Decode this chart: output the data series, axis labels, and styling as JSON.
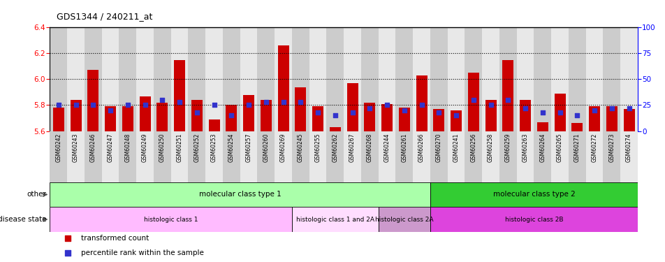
{
  "title": "GDS1344 / 240211_at",
  "samples": [
    "GSM60242",
    "GSM60243",
    "GSM60246",
    "GSM60247",
    "GSM60248",
    "GSM60249",
    "GSM60250",
    "GSM60251",
    "GSM60252",
    "GSM60253",
    "GSM60254",
    "GSM60257",
    "GSM60260",
    "GSM60269",
    "GSM60245",
    "GSM60255",
    "GSM60262",
    "GSM60267",
    "GSM60268",
    "GSM60244",
    "GSM60261",
    "GSM60266",
    "GSM60270",
    "GSM60241",
    "GSM60256",
    "GSM60258",
    "GSM60259",
    "GSM60263",
    "GSM60264",
    "GSM60265",
    "GSM60271",
    "GSM60272",
    "GSM60273",
    "GSM60274"
  ],
  "transformed_count": [
    5.78,
    5.84,
    6.07,
    5.79,
    5.79,
    5.87,
    5.82,
    6.15,
    5.84,
    5.69,
    5.8,
    5.88,
    5.84,
    6.26,
    5.94,
    5.79,
    5.63,
    5.97,
    5.82,
    5.81,
    5.78,
    6.03,
    5.77,
    5.76,
    6.05,
    5.84,
    6.15,
    5.84,
    5.67,
    5.89,
    5.66,
    5.79,
    5.79,
    5.77
  ],
  "percentile_rank": [
    25,
    25,
    25,
    20,
    25,
    25,
    30,
    28,
    18,
    25,
    15,
    25,
    28,
    28,
    28,
    18,
    15,
    18,
    22,
    25,
    20,
    25,
    18,
    15,
    30,
    25,
    30,
    22,
    18,
    18,
    15,
    20,
    22,
    22
  ],
  "y_min": 5.6,
  "y_max": 6.4,
  "y_ticks_left": [
    5.6,
    5.8,
    6.0,
    6.2,
    6.4
  ],
  "y_ticks_right": [
    0,
    25,
    50,
    75,
    100
  ],
  "dotted_lines": [
    5.8,
    6.0,
    6.2
  ],
  "bar_color": "#cc0000",
  "dot_color": "#3333cc",
  "baseline": 5.6,
  "col_colors": [
    "#cccccc",
    "#e8e8e8"
  ],
  "molecular_class_groups": [
    {
      "label": "molecular class type 1",
      "start": 0,
      "end": 22,
      "color": "#aaffaa"
    },
    {
      "label": "molecular class type 2",
      "start": 22,
      "end": 34,
      "color": "#33cc33"
    }
  ],
  "disease_state_groups": [
    {
      "label": "histologic class 1",
      "start": 0,
      "end": 14,
      "color": "#ffbbff"
    },
    {
      "label": "histologic class 1 and 2A",
      "start": 14,
      "end": 19,
      "color": "#ffddff"
    },
    {
      "label": "histologic class 2A",
      "start": 19,
      "end": 22,
      "color": "#cc99cc"
    },
    {
      "label": "histologic class 2B",
      "start": 22,
      "end": 34,
      "color": "#dd44dd"
    }
  ],
  "left_label_other": "other",
  "left_label_disease": "disease state",
  "legend_red_label": "transformed count",
  "legend_blue_label": "percentile rank within the sample",
  "fig_width": 9.53,
  "fig_height": 3.75,
  "dpi": 100
}
